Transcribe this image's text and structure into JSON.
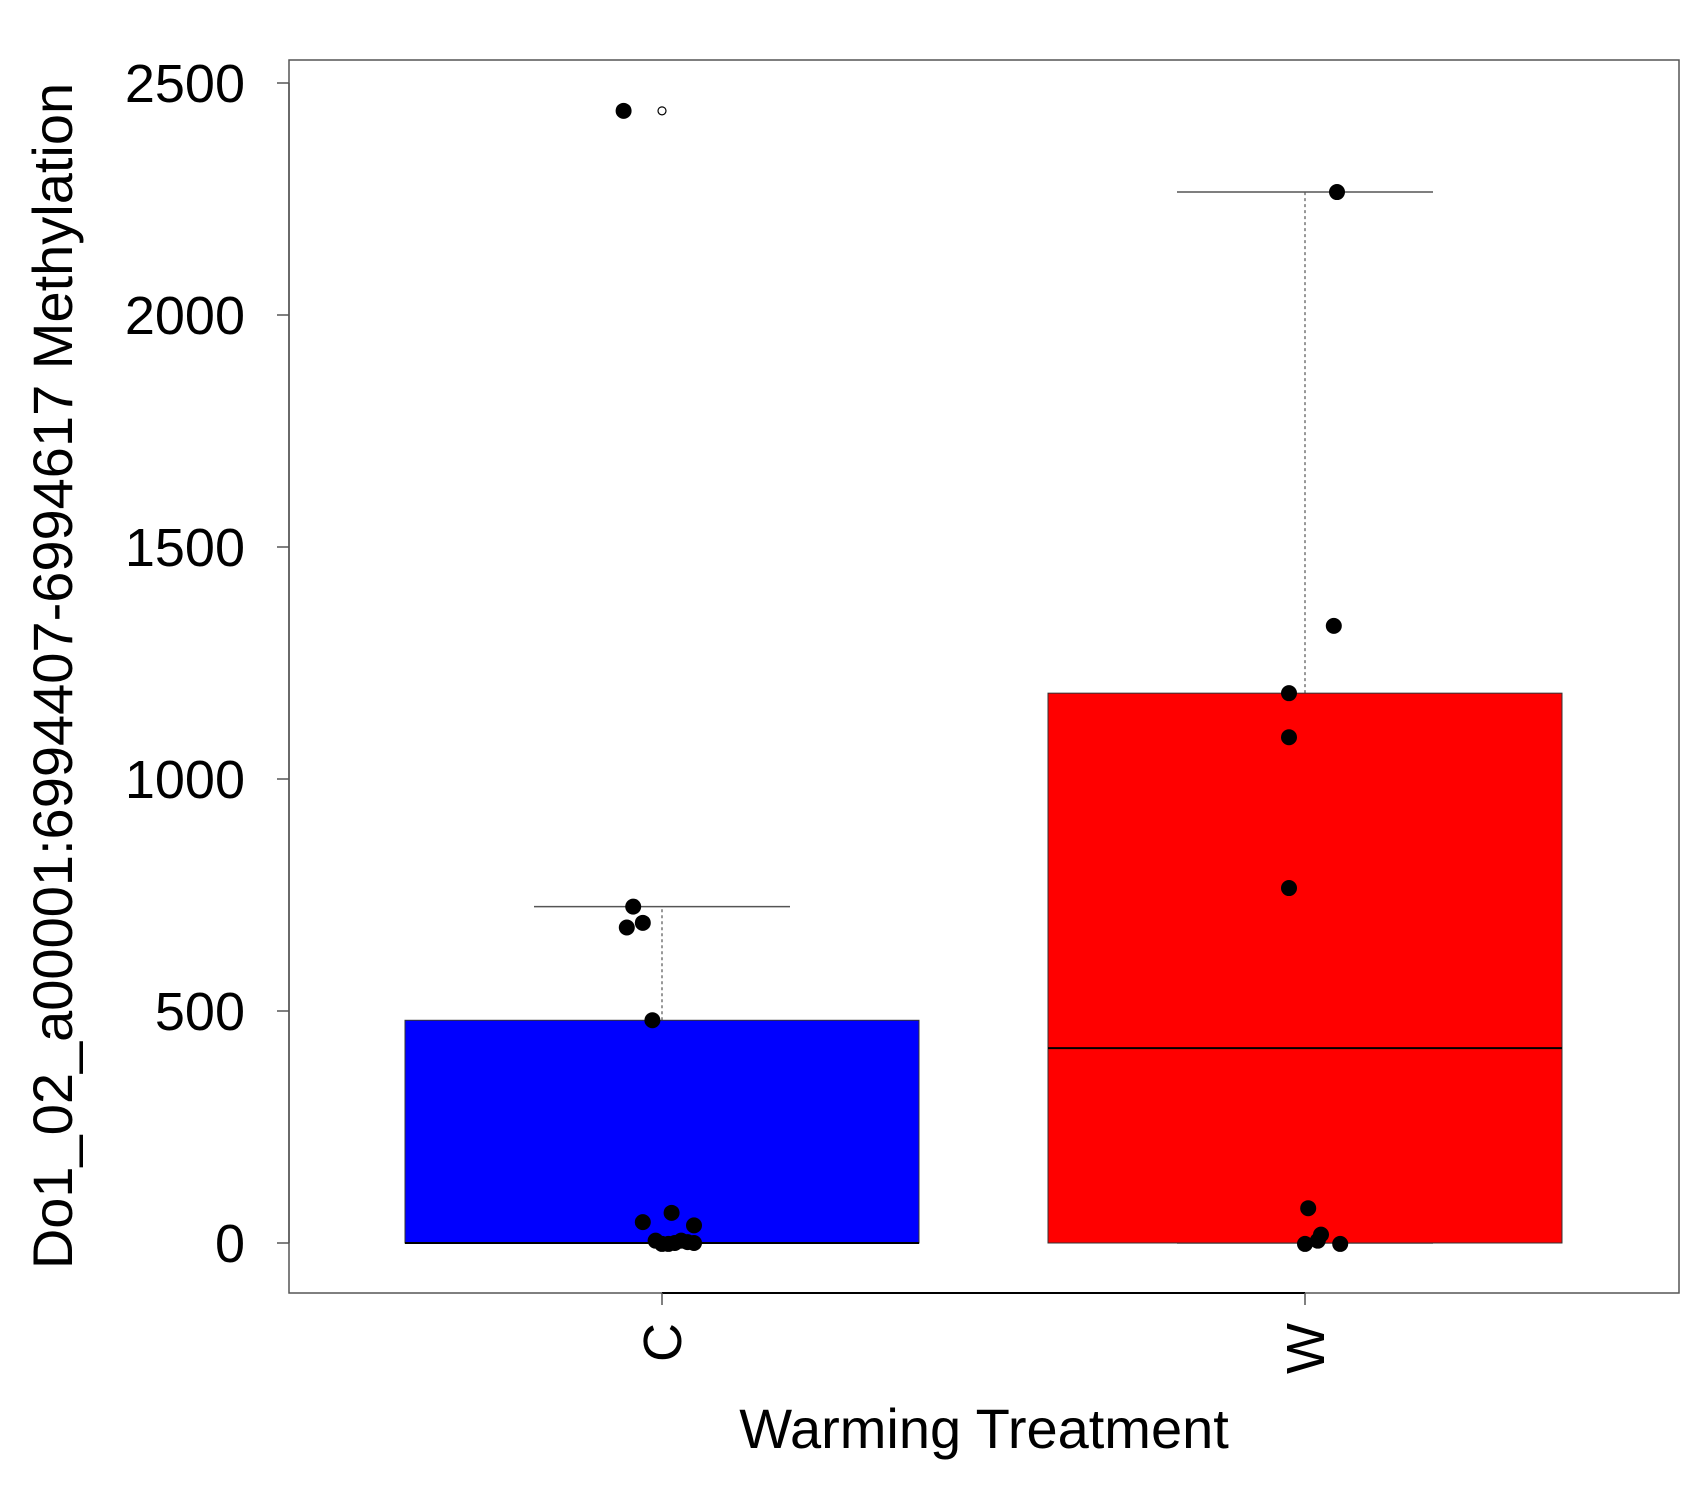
{
  "chart_data": {
    "type": "box",
    "title": "",
    "xlabel": "Warming Treatment",
    "ylabel": "Do1_02_a00001:6994407-6994617 Methylation",
    "ylim": [
      -100,
      2540
    ],
    "y_ticks": [
      0,
      500,
      1000,
      1500,
      2000,
      2500
    ],
    "grid": false,
    "categories": [
      "C",
      "W"
    ],
    "boxes": [
      {
        "category": "C",
        "color": "#0000ff",
        "whisker_low": 0,
        "q1": 0,
        "median": 0,
        "q3": 480,
        "whisker_high": 725,
        "outliers": [
          2440
        ]
      },
      {
        "category": "W",
        "color": "#ff0000",
        "whisker_low": 0,
        "q1": 0,
        "median": 420,
        "q3": 1185,
        "whisker_high": 2265,
        "outliers": []
      }
    ],
    "points": [
      {
        "category": "C",
        "jitter": -0.12,
        "y": 2440
      },
      {
        "category": "C",
        "jitter": -0.09,
        "y": 725
      },
      {
        "category": "C",
        "jitter": -0.11,
        "y": 680
      },
      {
        "category": "C",
        "jitter": -0.06,
        "y": 690
      },
      {
        "category": "C",
        "jitter": -0.03,
        "y": 480
      },
      {
        "category": "C",
        "jitter": -0.06,
        "y": 45
      },
      {
        "category": "C",
        "jitter": 0.03,
        "y": 65
      },
      {
        "category": "C",
        "jitter": 0.1,
        "y": 38
      },
      {
        "category": "C",
        "jitter": -0.02,
        "y": 5
      },
      {
        "category": "C",
        "jitter": 0.0,
        "y": -2
      },
      {
        "category": "C",
        "jitter": 0.02,
        "y": -2
      },
      {
        "category": "C",
        "jitter": 0.04,
        "y": 0
      },
      {
        "category": "C",
        "jitter": 0.06,
        "y": 5
      },
      {
        "category": "C",
        "jitter": 0.08,
        "y": 2
      },
      {
        "category": "C",
        "jitter": 0.1,
        "y": 0
      },
      {
        "category": "W",
        "jitter": 0.1,
        "y": 2265
      },
      {
        "category": "W",
        "jitter": 0.09,
        "y": 1330
      },
      {
        "category": "W",
        "jitter": -0.05,
        "y": 1185
      },
      {
        "category": "W",
        "jitter": -0.05,
        "y": 1090
      },
      {
        "category": "W",
        "jitter": -0.05,
        "y": 765
      },
      {
        "category": "W",
        "jitter": 0.01,
        "y": 75
      },
      {
        "category": "W",
        "jitter": 0.05,
        "y": 18
      },
      {
        "category": "W",
        "jitter": 0.04,
        "y": 5
      },
      {
        "category": "W",
        "jitter": 0.0,
        "y": -2
      },
      {
        "category": "W",
        "jitter": 0.11,
        "y": -2
      }
    ]
  }
}
